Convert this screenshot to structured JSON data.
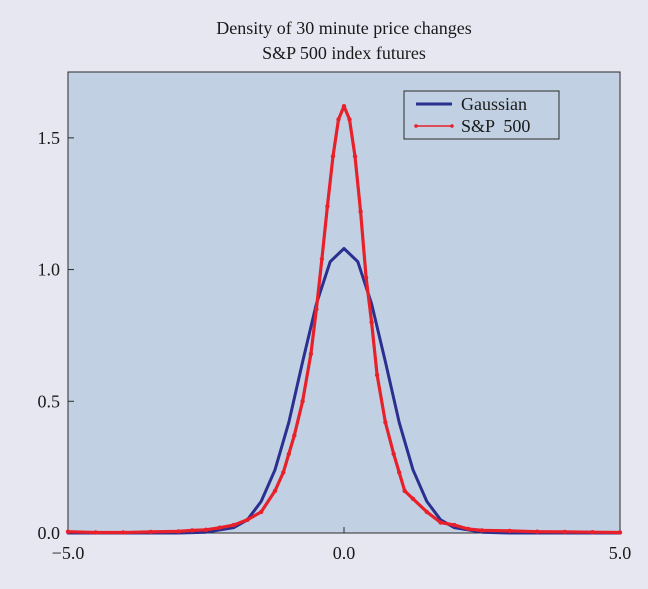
{
  "chart_data": {
    "type": "line",
    "title": "Density of 30 minute price changes",
    "subtitle": "S&P 500 index futures",
    "xlabel": "",
    "ylabel": "",
    "xlim": [
      -5.0,
      5.0
    ],
    "ylim": [
      0,
      1.75
    ],
    "x_ticks": [
      -5.0,
      0.0,
      5.0
    ],
    "x_tick_labels": [
      "−5.0",
      "0.0",
      "5.0"
    ],
    "y_ticks": [
      0.0,
      0.5,
      1.0,
      1.5
    ],
    "y_tick_labels": [
      "0.0",
      "0.5",
      "1.0",
      "1.5"
    ],
    "grid": false,
    "legend_position": "top-right",
    "series": [
      {
        "name": "Gaussian",
        "style": "line",
        "color": "#2b2f8f",
        "x": [
          -5.0,
          -4.0,
          -3.0,
          -2.5,
          -2.0,
          -1.75,
          -1.5,
          -1.25,
          -1.0,
          -0.75,
          -0.5,
          -0.25,
          0.0,
          0.25,
          0.5,
          0.75,
          1.0,
          1.25,
          1.5,
          1.75,
          2.0,
          2.5,
          3.0,
          4.0,
          5.0
        ],
        "y": [
          0.0,
          0.0,
          0.0,
          0.003,
          0.02,
          0.05,
          0.12,
          0.24,
          0.42,
          0.65,
          0.87,
          1.03,
          1.08,
          1.03,
          0.87,
          0.65,
          0.42,
          0.24,
          0.12,
          0.05,
          0.02,
          0.003,
          0.0,
          0.0,
          0.0
        ]
      },
      {
        "name": "S&P  500",
        "style": "line-markers",
        "color": "#e8202a",
        "x": [
          -5.0,
          -4.5,
          -4.0,
          -3.5,
          -3.0,
          -2.75,
          -2.5,
          -2.25,
          -2.0,
          -1.75,
          -1.5,
          -1.25,
          -1.1,
          -1.0,
          -0.9,
          -0.75,
          -0.6,
          -0.5,
          -0.4,
          -0.3,
          -0.2,
          -0.1,
          0.0,
          0.1,
          0.2,
          0.3,
          0.4,
          0.5,
          0.6,
          0.75,
          0.9,
          1.0,
          1.1,
          1.25,
          1.5,
          1.75,
          2.0,
          2.25,
          2.5,
          3.0,
          3.5,
          4.0,
          4.5,
          5.0
        ],
        "y": [
          0.005,
          0.002,
          0.002,
          0.004,
          0.006,
          0.01,
          0.012,
          0.02,
          0.03,
          0.05,
          0.08,
          0.16,
          0.23,
          0.3,
          0.37,
          0.5,
          0.68,
          0.85,
          1.04,
          1.24,
          1.43,
          1.57,
          1.62,
          1.57,
          1.43,
          1.22,
          0.97,
          0.8,
          0.6,
          0.42,
          0.3,
          0.23,
          0.16,
          0.13,
          0.08,
          0.04,
          0.03,
          0.015,
          0.01,
          0.008,
          0.005,
          0.004,
          0.003,
          0.002
        ]
      }
    ]
  }
}
